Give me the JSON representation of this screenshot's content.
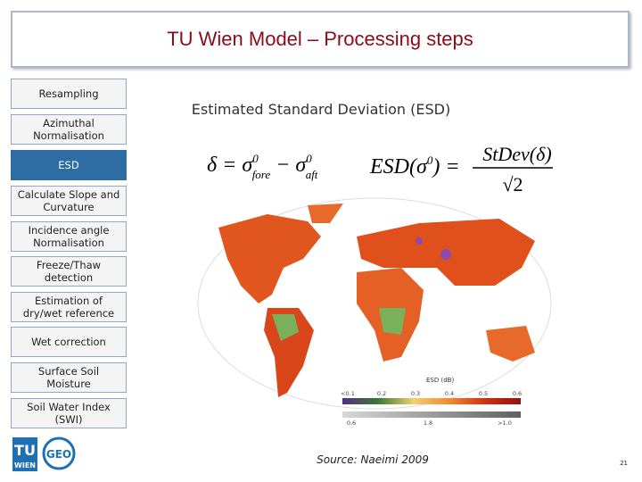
{
  "header": {
    "title": "TU Wien Model – Processing steps"
  },
  "steps": [
    {
      "label": "Resampling"
    },
    {
      "label": "Azimuthal Normalisation"
    },
    {
      "label": "ESD",
      "highlighted": true
    },
    {
      "label": "Calculate Slope and Curvature"
    },
    {
      "label": "Incidence angle Normalisation"
    },
    {
      "label": "Freeze/Thaw detection"
    },
    {
      "label": "Estimation of dry/wet reference"
    },
    {
      "label": "Wet correction"
    },
    {
      "label": "Surface Soil Moisture"
    },
    {
      "label": "Soil Water Index (SWI)"
    }
  ],
  "content": {
    "heading": "Estimated Standard Deviation (ESD)",
    "formula1": [
      "δ = σ",
      "0",
      "fore",
      " − σ",
      "0",
      "aft"
    ],
    "formula2": {
      "lhs": [
        "ESD(σ",
        "0",
        ") ="
      ],
      "numerator": "StDev(δ)",
      "denominator": "√2"
    },
    "map_legend": {
      "title": "ESD (dB)",
      "top_labels": [
        "<0.1",
        "0.2",
        "0.3",
        "0.4",
        "0.5",
        "0.6"
      ],
      "bottom_labels": [
        "0.6",
        "1.8",
        ">1.0"
      ]
    }
  },
  "footer": {
    "source": "Source: Naeimi 2009",
    "page_number": "21",
    "logo": {
      "tu": "TU",
      "wien": "WIEN",
      "geo": "GEO"
    }
  }
}
